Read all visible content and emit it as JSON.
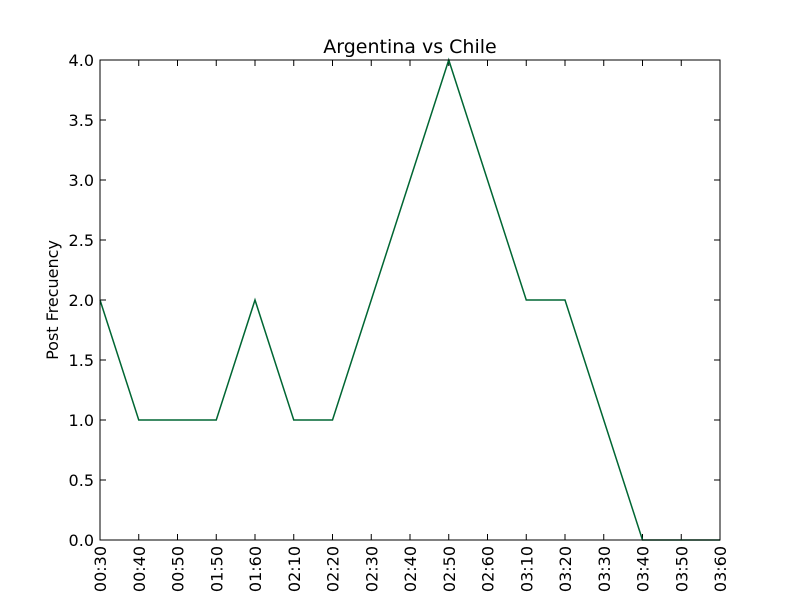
{
  "chart_data": {
    "type": "line",
    "title": "Argentina vs Chile",
    "xlabel": "",
    "ylabel": "Post Frecuency",
    "categories": [
      "00:30",
      "00:40",
      "00:50",
      "01:50",
      "01:60",
      "02:10",
      "02:20",
      "02:30",
      "02:40",
      "02:50",
      "02:60",
      "03:10",
      "03:20",
      "03:30",
      "03:40",
      "03:50",
      "03:60"
    ],
    "series": [
      {
        "values": [
          2,
          1,
          1,
          1,
          2,
          1,
          1,
          2,
          3,
          4,
          3,
          2,
          2,
          1,
          0,
          0,
          0
        ]
      }
    ],
    "ylim": [
      0,
      4
    ],
    "yticks": [
      "0.0",
      "0.5",
      "1.0",
      "1.5",
      "2.0",
      "2.5",
      "3.0",
      "3.5",
      "4.0"
    ],
    "grid": false,
    "line_color": "#006633",
    "axes_color": "#000000"
  }
}
